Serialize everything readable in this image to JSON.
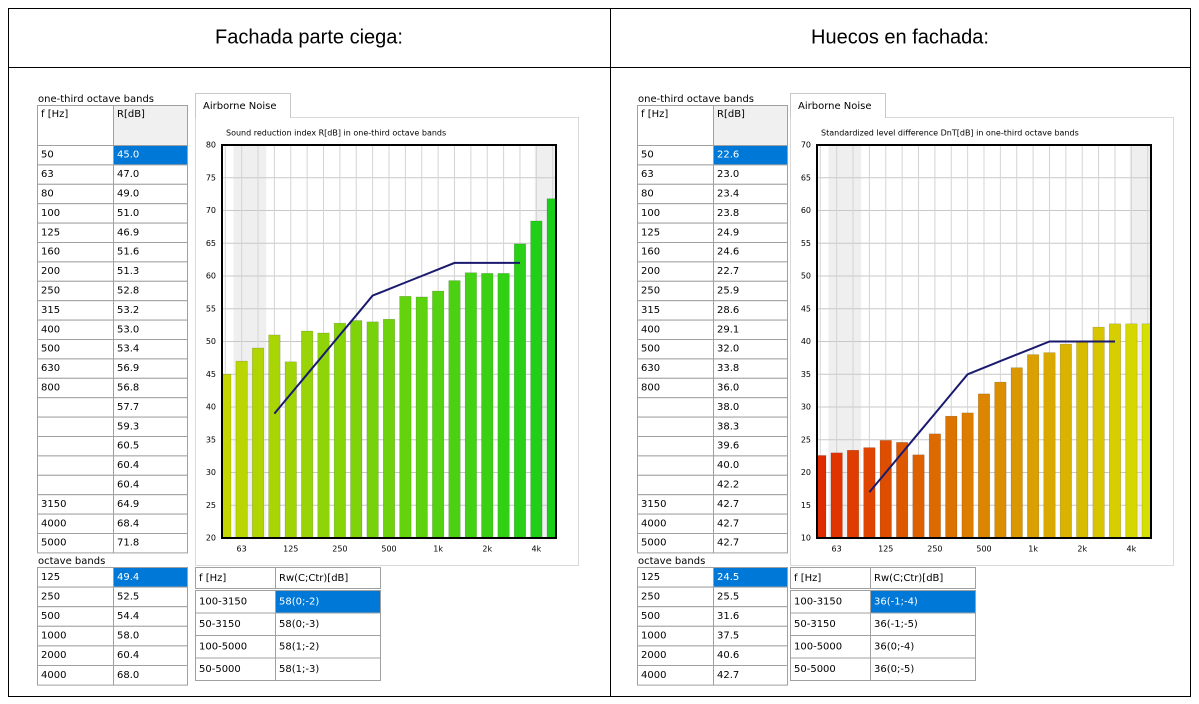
{
  "panels": [
    {
      "heading": "Fachada parte ciega:",
      "bands_title": "one-third octave bands",
      "columns": [
        "f [Hz]",
        "R[dB]"
      ],
      "freqs": [
        "50",
        "63",
        "80",
        "100",
        "125",
        "160",
        "200",
        "250",
        "315",
        "400",
        "500",
        "630",
        "800",
        null,
        null,
        null,
        null,
        null,
        "3150",
        "4000",
        "5000"
      ],
      "octave_title": "octave bands",
      "octave_rows": [
        [
          "125",
          "49.4"
        ],
        [
          "250",
          "52.5"
        ],
        [
          "500",
          "54.4"
        ],
        [
          "1000",
          "58.0"
        ],
        [
          "2000",
          "60.4"
        ],
        [
          "4000",
          "68.0"
        ]
      ],
      "rw_columns": [
        "f [Hz]",
        "Rw(C;Ctr)[dB]"
      ],
      "rw_rows": [
        [
          "100-3150",
          "58(0;-2)"
        ],
        [
          "50-3150",
          "58(0;-3)"
        ],
        [
          "100-5000",
          "58(1;-2)"
        ],
        [
          "50-5000",
          "58(1;-3)"
        ]
      ],
      "chart": {
        "type": "bar",
        "tab": "Airborne Noise",
        "title": "Sound reduction index R[dB] in one-third octave bands",
        "categories": [
          null,
          "63",
          null,
          null,
          "125",
          null,
          null,
          "250",
          null,
          null,
          "500",
          null,
          null,
          "1k",
          null,
          null,
          "2k",
          null,
          null,
          "4k",
          null
        ],
        "values": [
          45.0,
          47.0,
          49.0,
          51.0,
          46.9,
          51.6,
          51.3,
          52.8,
          53.2,
          53.0,
          53.4,
          56.9,
          56.8,
          57.7,
          59.3,
          60.5,
          60.4,
          60.4,
          64.9,
          68.4,
          71.8
        ],
        "value_labels": [
          "45.0",
          "47.0",
          "49.0",
          "51.0",
          "46.9",
          "51.6",
          "51.3",
          "52.8",
          "53.2",
          "53.0",
          "53.4",
          "56.9",
          "56.8",
          "57.7",
          "59.3",
          "60.5",
          "60.4",
          "60.4",
          "64.9",
          "68.4",
          "71.8"
        ],
        "reference": [
          null,
          null,
          null,
          39,
          42,
          45,
          48,
          51,
          54,
          57,
          58,
          59,
          60,
          61,
          62,
          62,
          62,
          62,
          62,
          null,
          null
        ],
        "reference_color": "#1a1a6e",
        "bar_colors": [
          "#c2d600",
          "#19cf19"
        ],
        "ylim": [
          20,
          80
        ],
        "yticks": [
          20,
          25,
          30,
          35,
          40,
          45,
          50,
          55,
          60,
          65,
          70,
          75,
          80
        ],
        "grid": true
      }
    },
    {
      "heading": "Huecos en fachada:",
      "bands_title": "one-third octave bands",
      "columns": [
        "f [Hz]",
        "R[dB]"
      ],
      "freqs": [
        "50",
        "63",
        "80",
        "100",
        "125",
        "160",
        "200",
        "250",
        "315",
        "400",
        "500",
        "630",
        "800",
        null,
        null,
        null,
        null,
        null,
        "3150",
        "4000",
        "5000"
      ],
      "octave_title": "octave bands",
      "octave_rows": [
        [
          "125",
          "24.5"
        ],
        [
          "250",
          "25.5"
        ],
        [
          "500",
          "31.6"
        ],
        [
          "1000",
          "37.5"
        ],
        [
          "2000",
          "40.6"
        ],
        [
          "4000",
          "42.7"
        ]
      ],
      "rw_columns": [
        "f [Hz]",
        "Rw(C;Ctr)[dB]"
      ],
      "rw_rows": [
        [
          "100-3150",
          "36(-1;-4)"
        ],
        [
          "50-3150",
          "36(-1;-5)"
        ],
        [
          "100-5000",
          "36(0;-4)"
        ],
        [
          "50-5000",
          "36(0;-5)"
        ]
      ],
      "chart": {
        "type": "bar",
        "tab": "Airborne Noise",
        "title": "Standardized level difference DnT[dB] in one-third octave bands",
        "categories": [
          null,
          "63",
          null,
          null,
          "125",
          null,
          null,
          "250",
          null,
          null,
          "500",
          null,
          null,
          "1k",
          null,
          null,
          "2k",
          null,
          null,
          "4k",
          null
        ],
        "values": [
          22.6,
          23.0,
          23.4,
          23.8,
          24.9,
          24.6,
          22.7,
          25.9,
          28.6,
          29.1,
          32.0,
          33.8,
          36.0,
          38.0,
          38.3,
          39.6,
          40.0,
          42.2,
          42.7,
          42.7,
          42.7
        ],
        "value_labels": [
          "22.6",
          "23.0",
          "23.4",
          "23.8",
          "24.9",
          "24.6",
          "22.7",
          "25.9",
          "28.6",
          "29.1",
          "32.0",
          "33.8",
          "36.0",
          "38.0",
          "38.3",
          "39.6",
          "40.0",
          "42.2",
          "42.7",
          "42.7",
          "42.7"
        ],
        "reference": [
          null,
          null,
          null,
          17,
          20,
          23,
          26,
          29,
          32,
          35,
          36,
          37,
          38,
          39,
          40,
          40,
          40,
          40,
          40,
          null,
          null
        ],
        "reference_color": "#1a1a6e",
        "bar_colors": [
          "#e02a00",
          "#d6e000"
        ],
        "ylim": [
          10,
          70
        ],
        "yticks": [
          10,
          15,
          20,
          25,
          30,
          35,
          40,
          45,
          50,
          55,
          60,
          65,
          70
        ],
        "grid": true
      }
    }
  ]
}
